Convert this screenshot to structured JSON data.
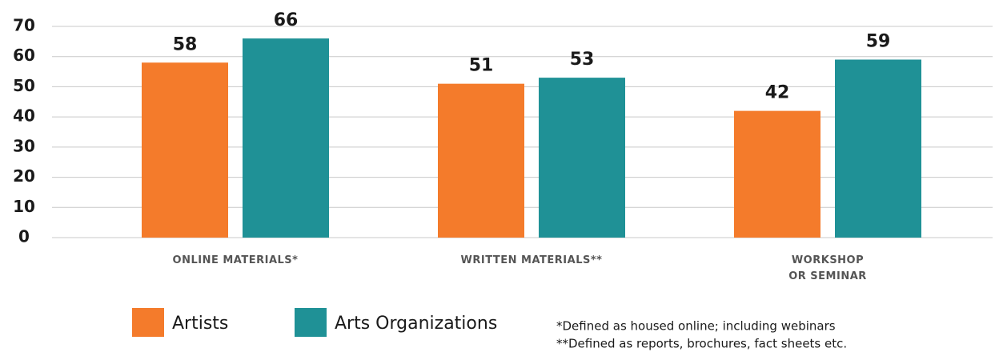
{
  "chart_data": {
    "type": "bar",
    "categories": [
      "ONLINE MATERIALS*",
      "WRITTEN MATERIALS**",
      "WORKSHOP OR SEMINAR"
    ],
    "series": [
      {
        "name": "Artists",
        "color": "#f47b2b",
        "values": [
          58,
          51,
          42
        ]
      },
      {
        "name": "Arts Organizations",
        "color": "#1f9196",
        "values": [
          66,
          53,
          59
        ]
      }
    ],
    "ylim": [
      0,
      70
    ],
    "yticks": [
      0,
      10,
      20,
      30,
      40,
      50,
      60,
      70
    ],
    "grid": true,
    "notes": [
      "*Defined as housed online; including webinars",
      "**Defined as reports, brochures, fact sheets etc."
    ]
  }
}
